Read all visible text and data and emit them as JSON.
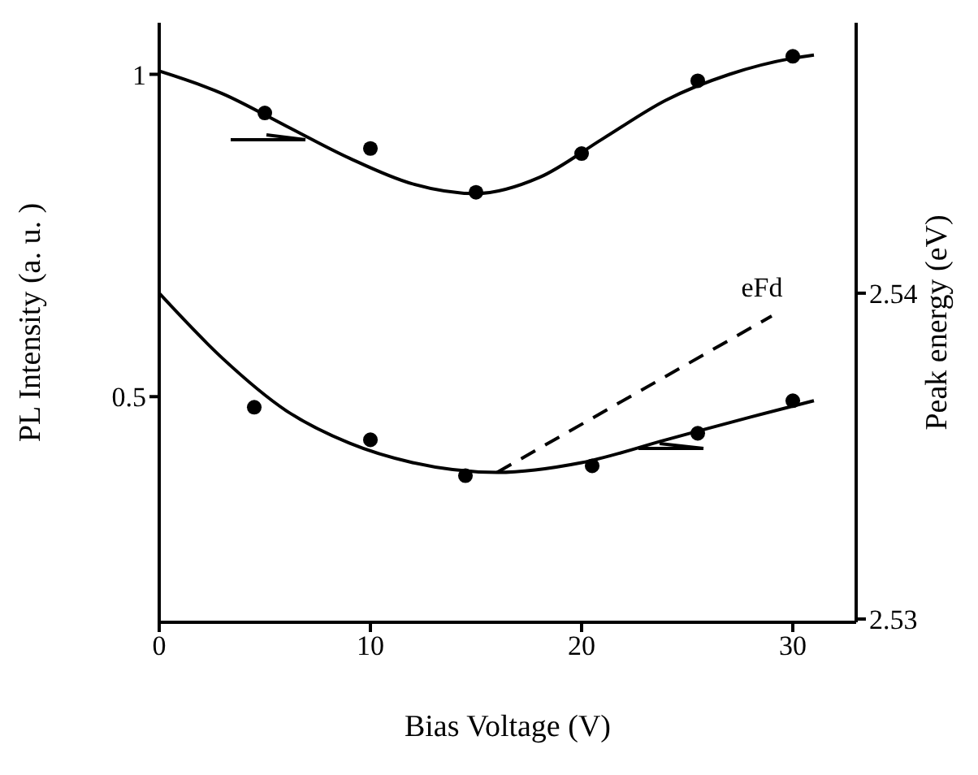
{
  "chart_data": {
    "type": "scatter",
    "xlabel": "Bias Voltage (V)",
    "ylabel": "PL Intensity (a. u. )",
    "y2label": "Peak energy (eV)",
    "xlim": [
      0,
      33
    ],
    "xticks": [
      0,
      10,
      20,
      30
    ],
    "ylim": [
      0.15,
      1.08
    ],
    "yticks": [
      0.5,
      1
    ],
    "y2lim": [
      2.5299,
      2.5483
    ],
    "y2ticks": [
      2.53,
      2.54
    ],
    "series": [
      {
        "color": "#000000",
        "marker": "circle",
        "axis": "y",
        "x": [
          5,
          10,
          15,
          20,
          25.5,
          30
        ],
        "values": [
          0.94,
          0.885,
          0.817,
          0.877,
          0.99,
          1.028
        ]
      },
      {
        "type": "line",
        "color": "#000000",
        "marker": "none",
        "line_style": "solid",
        "axis": "y",
        "x": [
          0,
          3,
          6,
          9,
          12,
          15,
          18,
          21,
          24,
          27,
          30,
          31
        ],
        "values": [
          1.005,
          0.97,
          0.92,
          0.87,
          0.83,
          0.815,
          0.84,
          0.9,
          0.96,
          1.0,
          1.025,
          1.03
        ]
      },
      {
        "color": "#000000",
        "marker": "circle",
        "axis": "y2",
        "x": [
          4.5,
          10,
          14.5,
          20.5,
          25.5,
          30
        ],
        "values": [
          2.5365,
          2.5355,
          2.5344,
          2.5347,
          2.5357,
          2.5367
        ]
      },
      {
        "type": "line",
        "color": "#000000",
        "marker": "none",
        "line_style": "solid",
        "axis": "y2",
        "x": [
          0,
          3,
          6,
          9,
          12,
          16,
          20,
          24,
          28,
          31
        ],
        "values": [
          2.54,
          2.538,
          2.5364,
          2.5354,
          2.5348,
          2.5345,
          2.5348,
          2.5355,
          2.5362,
          2.5367
        ]
      },
      {
        "type": "line",
        "name": "eFd",
        "color": "#000000",
        "marker": "none",
        "line_style": "dashed",
        "axis": "y2",
        "x": [
          16,
          29
        ],
        "values": [
          2.5345,
          2.5393
        ]
      }
    ]
  }
}
